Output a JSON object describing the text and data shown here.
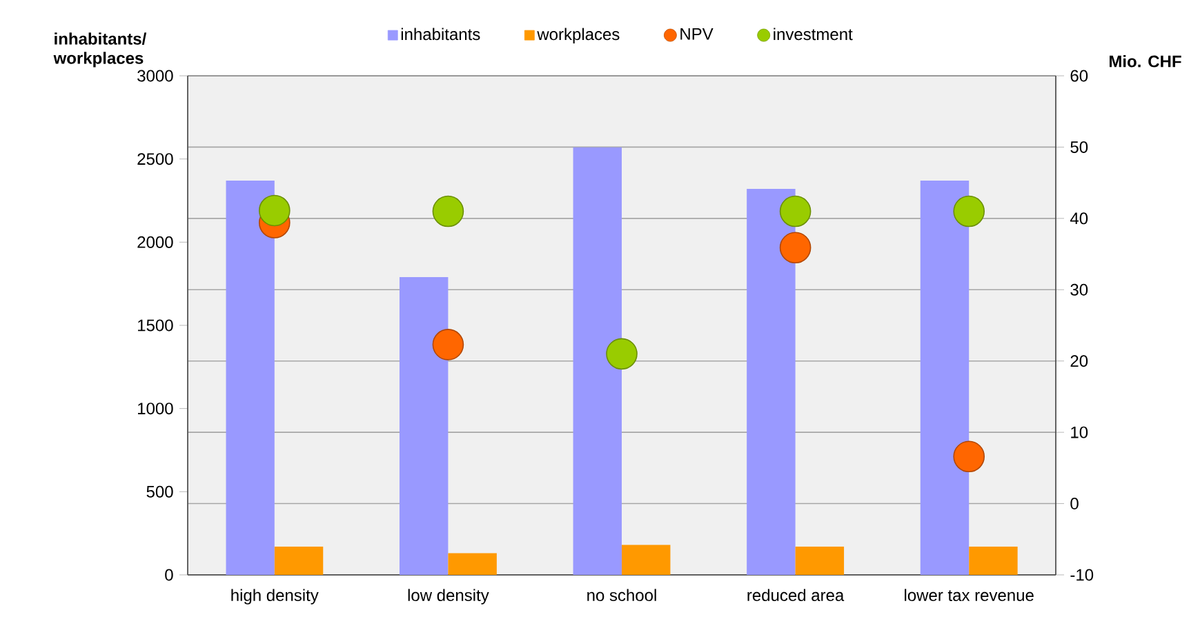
{
  "chart_data": {
    "type": "bar",
    "ylabel": "inhabitants/ workplaces",
    "y2label": "Mio. CHF",
    "categories": [
      "high density",
      "low density",
      "no school",
      "reduced area",
      "lower tax revenue"
    ],
    "series": [
      {
        "name": "inhabitants",
        "color": "#9999ff",
        "values": [
          2370,
          1790,
          2570,
          2320,
          2370
        ]
      },
      {
        "name": "workplaces",
        "color": "#ff9900",
        "values": [
          170,
          130,
          180,
          170,
          170
        ]
      },
      {
        "name": "NPV",
        "type": "scatter",
        "axis": "y2",
        "color": "#ff6600",
        "values": [
          39.4,
          22.3,
          null,
          35.9,
          6.6
        ]
      },
      {
        "name": "investment",
        "type": "scatter",
        "axis": "y2",
        "color": "#99cc00",
        "values": [
          41.1,
          41,
          21,
          41,
          41
        ]
      }
    ],
    "ylim": [
      0,
      3000
    ],
    "yticks": [
      0,
      500,
      1000,
      1500,
      2000,
      2500,
      3000
    ],
    "y2lim": [
      -10,
      60
    ],
    "y2ticks": [
      -10,
      0,
      10,
      20,
      30,
      40,
      50,
      60
    ],
    "grid": "y",
    "legend": "top"
  }
}
